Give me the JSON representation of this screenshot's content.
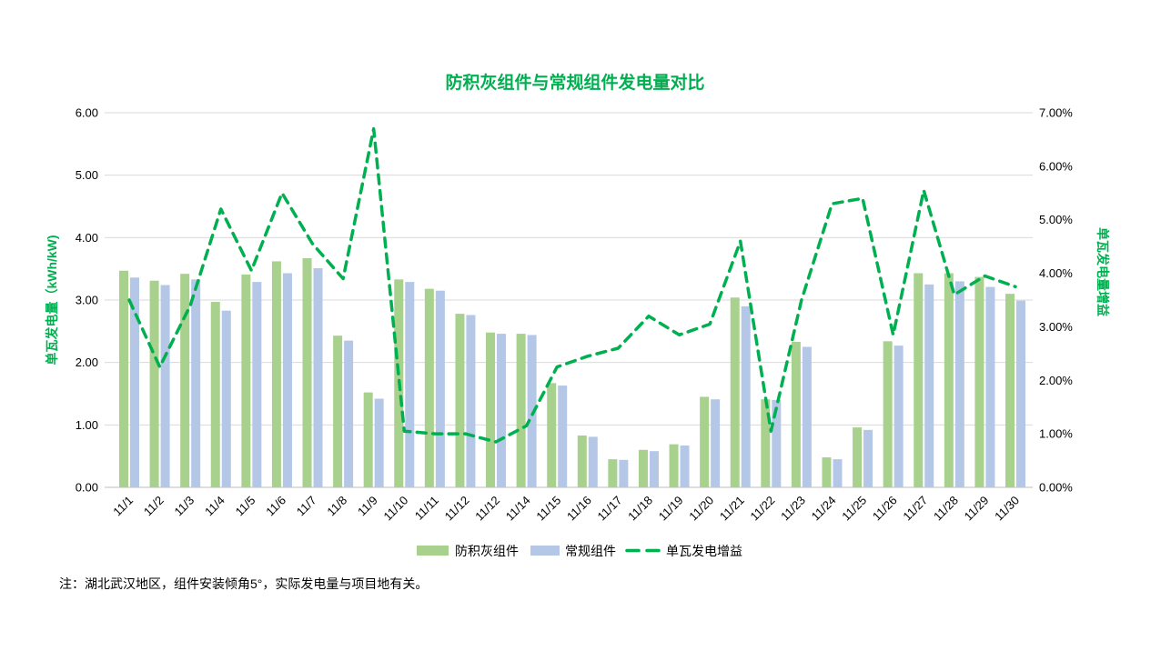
{
  "note": "注：湖北武汉地区，组件安装倾角5°，实际发电量与项目地有关。",
  "colors": {
    "accent_green": "#00B050",
    "bar_anti": "#A9D18E",
    "bar_conventional": "#B4C7E7",
    "gridline": "#D9D9D9",
    "axis_line": "#C9C9C9",
    "tick_text": "#000000"
  },
  "chart_data": {
    "type": "bar",
    "subtype": "clustered bars + dashed line on secondary axis",
    "title": "防积灰组件与常规组件发电量对比",
    "categories": [
      "11/1",
      "11/2",
      "11/3",
      "11/4",
      "11/5",
      "11/6",
      "11/7",
      "11/8",
      "11/9",
      "11/10",
      "11/11",
      "11/12",
      "11/12",
      "11/14",
      "11/15",
      "11/16",
      "11/17",
      "11/18",
      "11/19",
      "11/20",
      "11/21",
      "11/22",
      "11/23",
      "11/24",
      "11/25",
      "11/26",
      "11/27",
      "11/28",
      "11/29",
      "11/30"
    ],
    "series": [
      {
        "name": "防积灰组件",
        "type": "bar",
        "axis": "left",
        "color": "#A9D18E",
        "values": [
          3.47,
          3.31,
          3.42,
          2.97,
          3.41,
          3.62,
          3.67,
          2.43,
          1.52,
          3.33,
          3.18,
          2.78,
          2.48,
          2.46,
          1.67,
          0.83,
          0.45,
          0.6,
          0.69,
          1.45,
          3.04,
          1.41,
          2.33,
          0.48,
          0.96,
          2.34,
          3.43,
          3.43,
          3.37,
          3.1
        ]
      },
      {
        "name": "常规组件",
        "type": "bar",
        "axis": "left",
        "color": "#B4C7E7",
        "values": [
          3.36,
          3.24,
          3.33,
          2.83,
          3.29,
          3.43,
          3.51,
          2.35,
          1.42,
          3.29,
          3.15,
          2.76,
          2.46,
          2.44,
          1.63,
          0.81,
          0.44,
          0.58,
          0.67,
          1.41,
          2.9,
          1.4,
          2.25,
          0.45,
          0.92,
          2.27,
          3.25,
          3.3,
          3.21,
          2.99
        ]
      },
      {
        "name": "单瓦发电增益",
        "type": "line",
        "style": "dashed",
        "axis": "right",
        "color": "#00B050",
        "values_percent": [
          3.5,
          2.25,
          3.4,
          5.2,
          4.05,
          5.5,
          4.55,
          3.9,
          6.7,
          1.05,
          1.0,
          1.0,
          0.85,
          1.15,
          2.25,
          2.45,
          2.6,
          3.2,
          2.85,
          3.05,
          4.6,
          1.05,
          3.5,
          5.3,
          5.4,
          2.85,
          5.55,
          3.6,
          3.95,
          3.75
        ]
      }
    ],
    "left_axis": {
      "title": "单瓦发电量（kWh/kW)",
      "min": 0,
      "max": 6,
      "step": 1,
      "ticks": [
        "0.00",
        "1.00",
        "2.00",
        "3.00",
        "4.00",
        "5.00",
        "6.00"
      ]
    },
    "right_axis": {
      "title": "单瓦发电量增益",
      "min": 0,
      "max": 7,
      "step": 1,
      "ticks": [
        "0.00%",
        "1.00%",
        "2.00%",
        "3.00%",
        "4.00%",
        "5.00%",
        "6.00%",
        "7.00%"
      ]
    },
    "grid": true,
    "legend_position": "bottom",
    "legend": [
      "防积灰组件",
      "常规组件",
      "单瓦发电增益"
    ]
  }
}
